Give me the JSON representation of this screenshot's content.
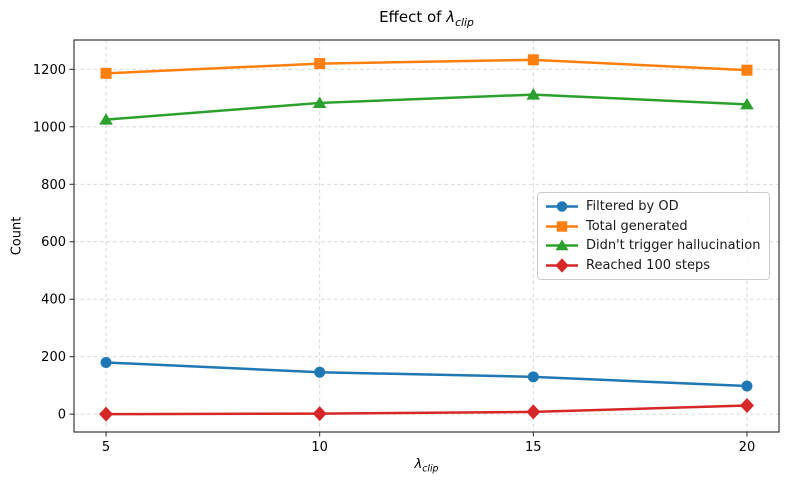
{
  "chart_data": {
    "type": "line",
    "title": {
      "prefix": "Effect of ",
      "symbol": "λ",
      "subscript": "clip"
    },
    "xlabel": {
      "symbol": "λ",
      "subscript": "clip"
    },
    "ylabel": "Count",
    "x": [
      5,
      10,
      15,
      20
    ],
    "series": [
      {
        "name": "Filtered by OD",
        "marker": "circle",
        "color": "#1f77b4",
        "values": [
          180,
          146,
          130,
          98
        ]
      },
      {
        "name": "Total generated",
        "marker": "square",
        "color": "#ff7f0e",
        "values": [
          1186,
          1220,
          1233,
          1197
        ]
      },
      {
        "name": "Didn't trigger hallucination",
        "marker": "triangle",
        "color": "#2ca02c",
        "values": [
          1025,
          1083,
          1112,
          1078
        ]
      },
      {
        "name": "Reached 100 steps",
        "marker": "diamond",
        "color": "#d62728",
        "values": [
          0,
          2,
          8,
          30
        ]
      }
    ],
    "xticks": [
      5,
      10,
      15,
      20
    ],
    "yticks": [
      0,
      200,
      400,
      600,
      800,
      1000,
      1200
    ],
    "xlim": [
      4.25,
      20.75
    ],
    "ylim": [
      -62,
      1302
    ],
    "grid": true,
    "grid_color": "#d3d3d3",
    "axis_color": "#262626",
    "legend_position": "center right"
  }
}
